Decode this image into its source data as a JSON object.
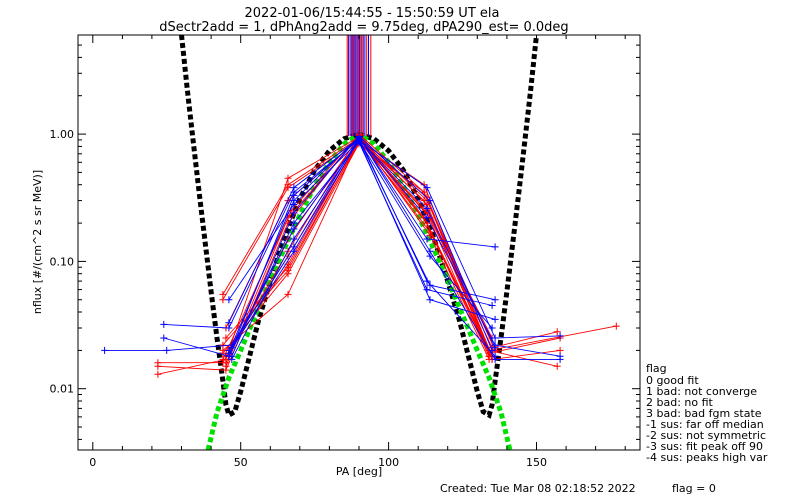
{
  "chart_data": {
    "type": "scatter",
    "title_line1": "2022-01-06/15:44:55 - 15:50:59 UT ela",
    "title_line2": "dSectr2add = 1, dPhAng2add = 9.75deg, dPA290_est=   0.0deg",
    "xlabel": "PA [deg]",
    "ylabel": "nflux [#/(cm^2 s sr MeV)]",
    "xlim": [
      -5,
      185
    ],
    "ylim": [
      0.0033,
      6.0
    ],
    "yscale": "log",
    "x_ticks": [
      0,
      50,
      100,
      150
    ],
    "x_tick_labels": [
      "0",
      "50",
      "100",
      "150"
    ],
    "y_ticks": [
      0.01,
      0.1,
      1.0
    ],
    "y_tick_labels": [
      "0.01",
      "0.10",
      "1.00"
    ],
    "grid": false,
    "colors": {
      "red": "#ff0000",
      "blue": "#0000ff",
      "black": "#000000",
      "green": "#00e000"
    },
    "model_curves": [
      {
        "color": "black",
        "points": [
          [
            30,
            6.0
          ],
          [
            32,
            2.2
          ],
          [
            34,
            0.85
          ],
          [
            36,
            0.34
          ],
          [
            38,
            0.14
          ],
          [
            40,
            0.058
          ],
          [
            42,
            0.025
          ],
          [
            44,
            0.0115
          ],
          [
            45,
            0.0075
          ],
          [
            46,
            0.0062
          ],
          [
            48,
            0.0066
          ],
          [
            50,
            0.0095
          ],
          [
            53,
            0.018
          ],
          [
            56,
            0.034
          ],
          [
            60,
            0.07
          ],
          [
            65,
            0.16
          ],
          [
            70,
            0.31
          ],
          [
            75,
            0.52
          ],
          [
            80,
            0.74
          ],
          [
            85,
            0.92
          ],
          [
            90,
            1.0
          ],
          [
            95,
            0.92
          ],
          [
            100,
            0.74
          ],
          [
            105,
            0.52
          ],
          [
            110,
            0.31
          ],
          [
            115,
            0.16
          ],
          [
            120,
            0.07
          ],
          [
            124,
            0.034
          ],
          [
            127,
            0.018
          ],
          [
            130,
            0.0095
          ],
          [
            132,
            0.0066
          ],
          [
            134,
            0.0062
          ],
          [
            135,
            0.0075
          ],
          [
            136,
            0.0115
          ],
          [
            138,
            0.025
          ],
          [
            140,
            0.058
          ],
          [
            142,
            0.14
          ],
          [
            144,
            0.34
          ],
          [
            146,
            0.85
          ],
          [
            148,
            2.2
          ],
          [
            150,
            6.0
          ]
        ]
      },
      {
        "color": "green",
        "points": [
          [
            39,
            0.0033
          ],
          [
            42,
            0.0065
          ],
          [
            46,
            0.0122
          ],
          [
            50,
            0.02
          ],
          [
            55,
            0.038
          ],
          [
            60,
            0.072
          ],
          [
            65,
            0.13
          ],
          [
            70,
            0.23
          ],
          [
            75,
            0.39
          ],
          [
            80,
            0.6
          ],
          [
            85,
            0.84
          ],
          [
            90,
            1.0
          ],
          [
            95,
            0.84
          ],
          [
            100,
            0.6
          ],
          [
            105,
            0.39
          ],
          [
            110,
            0.23
          ],
          [
            115,
            0.13
          ],
          [
            120,
            0.072
          ],
          [
            125,
            0.038
          ],
          [
            130,
            0.02
          ],
          [
            134,
            0.0122
          ],
          [
            138,
            0.0065
          ],
          [
            141,
            0.0033
          ]
        ]
      }
    ],
    "upper_ticks_x": [
      86.0,
      86.5,
      87.0,
      87.4,
      87.8,
      88.2,
      88.6,
      89.0,
      89.4,
      89.8,
      90.2,
      90.6,
      91.0,
      91.5,
      92.0,
      92.6,
      93.2,
      94.0
    ],
    "upper_ticks_color": [
      "red",
      "blue",
      "red",
      "blue",
      "red",
      "blue",
      "blue",
      "red",
      "blue",
      "red",
      "blue",
      "red",
      "blue",
      "red",
      "blue",
      "red",
      "blue",
      "red"
    ],
    "series": [
      {
        "color": "red",
        "points": [
          [
            22,
            0.015
          ],
          [
            45,
            0.014
          ],
          [
            66,
            0.2
          ],
          [
            90,
            1.0
          ],
          [
            112,
            0.35
          ],
          [
            135,
            0.018
          ]
        ]
      },
      {
        "color": "red",
        "points": [
          [
            22,
            0.016
          ],
          [
            44,
            0.016
          ],
          [
            66,
            0.12
          ],
          [
            90,
            0.98
          ],
          [
            113,
            0.3
          ],
          [
            136,
            0.02
          ]
        ]
      },
      {
        "color": "red",
        "points": [
          [
            22,
            0.013
          ],
          [
            45,
            0.017
          ],
          [
            66,
            0.45
          ],
          [
            90,
            0.95
          ],
          [
            113,
            0.28
          ],
          [
            134,
            0.019
          ],
          [
            158,
            0.025
          ]
        ]
      },
      {
        "color": "red",
        "points": [
          [
            44,
            0.055
          ],
          [
            66,
            0.4
          ],
          [
            90,
            0.93
          ],
          [
            114,
            0.22
          ],
          [
            135,
            0.021
          ],
          [
            157,
            0.028
          ]
        ]
      },
      {
        "color": "red",
        "points": [
          [
            44,
            0.05
          ],
          [
            66,
            0.38
          ],
          [
            90,
            0.9
          ],
          [
            112,
            0.4
          ],
          [
            135,
            0.017
          ],
          [
            158,
            0.02
          ]
        ]
      },
      {
        "color": "red",
        "points": [
          [
            45,
            0.03
          ],
          [
            66,
            0.3
          ],
          [
            90,
            0.92
          ],
          [
            114,
            0.17
          ],
          [
            134,
            0.02
          ],
          [
            177,
            0.031
          ]
        ]
      },
      {
        "color": "red",
        "points": [
          [
            44,
            0.022
          ],
          [
            66,
            0.085
          ],
          [
            90,
            0.88
          ],
          [
            113,
            0.2
          ],
          [
            135,
            0.018
          ]
        ]
      },
      {
        "color": "red",
        "points": [
          [
            45,
            0.025
          ],
          [
            66,
            0.09
          ],
          [
            90,
            0.86
          ],
          [
            113,
            0.25
          ],
          [
            135,
            0.025
          ]
        ]
      },
      {
        "color": "red",
        "points": [
          [
            44,
            0.02
          ],
          [
            66,
            0.055
          ],
          [
            90,
            0.9
          ],
          [
            112,
            0.3
          ],
          [
            134,
            0.02
          ],
          [
            157,
            0.015
          ]
        ]
      },
      {
        "color": "red",
        "points": [
          [
            45,
            0.018
          ],
          [
            66,
            0.095
          ],
          [
            90,
            0.9
          ],
          [
            113,
            0.32
          ],
          [
            135,
            0.018
          ]
        ]
      },
      {
        "color": "red",
        "points": [
          [
            44,
            0.019
          ],
          [
            66,
            0.08
          ],
          [
            90,
            0.84
          ],
          [
            112,
            0.35
          ],
          [
            134,
            0.019
          ]
        ]
      },
      {
        "color": "red",
        "points": [
          [
            46,
            0.02
          ],
          [
            66,
            0.11
          ],
          [
            90,
            0.87
          ],
          [
            113,
            0.24
          ],
          [
            134,
            0.018
          ]
        ]
      },
      {
        "color": "red",
        "points": [
          [
            45,
            0.016
          ],
          [
            66,
            0.15
          ],
          [
            90,
            0.95
          ],
          [
            114,
            0.16
          ],
          [
            134,
            0.017
          ]
        ]
      },
      {
        "color": "red",
        "points": [
          [
            44,
            0.017
          ],
          [
            66,
            0.22
          ],
          [
            90,
            0.96
          ],
          [
            113,
            0.2
          ],
          [
            135,
            0.017
          ]
        ]
      },
      {
        "color": "red",
        "points": [
          [
            45,
            0.015
          ],
          [
            67,
            0.25
          ],
          [
            90,
            0.99
          ],
          [
            112,
            0.22
          ],
          [
            134,
            0.018
          ]
        ]
      },
      {
        "color": "blue",
        "points": [
          [
            4,
            0.02
          ],
          [
            25,
            0.02
          ],
          [
            47,
            0.022
          ],
          [
            68,
            0.3
          ],
          [
            90,
            0.95
          ],
          [
            114,
            0.12
          ],
          [
            136,
            0.017
          ],
          [
            158,
            0.017
          ]
        ]
      },
      {
        "color": "blue",
        "points": [
          [
            24,
            0.025
          ],
          [
            46,
            0.018
          ],
          [
            68,
            0.33
          ],
          [
            90,
            0.92
          ],
          [
            113,
            0.22
          ],
          [
            136,
            0.022
          ],
          [
            158,
            0.018
          ]
        ]
      },
      {
        "color": "blue",
        "points": [
          [
            24,
            0.032
          ],
          [
            46,
            0.03
          ],
          [
            68,
            0.35
          ],
          [
            90,
            0.9
          ],
          [
            113,
            0.38
          ],
          [
            136,
            0.025
          ],
          [
            158,
            0.026
          ]
        ]
      },
      {
        "color": "blue",
        "points": [
          [
            46,
            0.033
          ],
          [
            68,
            0.38
          ],
          [
            90,
            0.93
          ],
          [
            113,
            0.07
          ],
          [
            136,
            0.018
          ]
        ]
      },
      {
        "color": "blue",
        "points": [
          [
            46,
            0.05
          ],
          [
            68,
            0.28
          ],
          [
            90,
            0.88
          ],
          [
            114,
            0.05
          ],
          [
            136,
            0.035
          ]
        ]
      },
      {
        "color": "blue",
        "points": [
          [
            46,
            0.018
          ],
          [
            68,
            0.2
          ],
          [
            90,
            0.86
          ],
          [
            113,
            0.06
          ],
          [
            135,
            0.045
          ]
        ]
      },
      {
        "color": "blue",
        "points": [
          [
            47,
            0.017
          ],
          [
            68,
            0.15
          ],
          [
            90,
            0.9
          ],
          [
            114,
            0.065
          ],
          [
            136,
            0.05
          ]
        ]
      },
      {
        "color": "blue",
        "points": [
          [
            46,
            0.02
          ],
          [
            68,
            0.13
          ],
          [
            90,
            0.94
          ],
          [
            113,
            0.15
          ],
          [
            136,
            0.13
          ]
        ]
      },
      {
        "color": "blue",
        "points": [
          [
            47,
            0.021
          ],
          [
            68,
            0.18
          ],
          [
            90,
            0.89
          ],
          [
            114,
            0.11
          ],
          [
            135,
            0.03
          ]
        ]
      },
      {
        "color": "blue",
        "points": [
          [
            46,
            0.019
          ],
          [
            68,
            0.12
          ],
          [
            90,
            0.91
          ],
          [
            113,
            0.26
          ],
          [
            136,
            0.021
          ]
        ]
      },
      {
        "color": "blue",
        "points": [
          [
            47,
            0.018
          ],
          [
            68,
            0.24
          ],
          [
            90,
            0.96
          ],
          [
            114,
            0.3
          ],
          [
            135,
            0.02
          ]
        ]
      }
    ],
    "legend_title": "flag",
    "legend_entries": [
      " 0 good fit",
      " 1 bad: not converge",
      " 2 bad: no fit",
      " 3 bad: bad fgm state",
      "-1 sus: far off median",
      "-2 sus: not symmetric",
      "-3 sus: fit peak off 90",
      "-4 sus: peaks high var"
    ]
  },
  "footer": {
    "created": "Created: Tue Mar 08 02:18:52 2022",
    "flag": "flag = 0"
  }
}
